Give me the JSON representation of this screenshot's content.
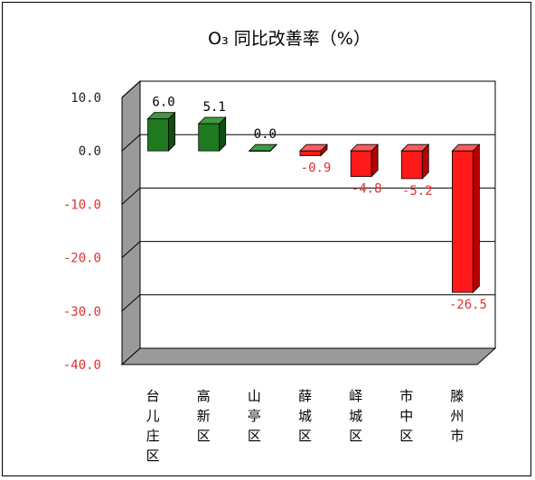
{
  "chart_data": {
    "type": "bar",
    "title": "O₃ 同比改善率（%）",
    "xlabel": "",
    "ylabel": "",
    "ylim": [
      -40,
      10
    ],
    "yticks": [
      10,
      0,
      -10,
      -20,
      -30,
      -40
    ],
    "ytick_labels": [
      "10.0",
      "0.0",
      "-10.0",
      "-20.0",
      "-30.0",
      "-40.0"
    ],
    "grid": true,
    "categories": [
      "台儿庄区",
      "高新区",
      "山亭区",
      "薛城区",
      "峄城区",
      "市中区",
      "滕州市"
    ],
    "values": [
      6.0,
      5.1,
      0.0,
      -0.9,
      -4.8,
      -5.2,
      -26.5
    ],
    "value_labels": [
      "6.0",
      "5.1",
      "0.0",
      "-0.9",
      "-4.8",
      "-5.2",
      "-26.5"
    ],
    "colors": {
      "positive_bar": "#1f7a1f",
      "negative_bar": "#ff1a1a",
      "positive_tick": "#222222",
      "negative_tick": "#e03030",
      "wall": "#9a9a9a",
      "grid": "#000000"
    }
  }
}
